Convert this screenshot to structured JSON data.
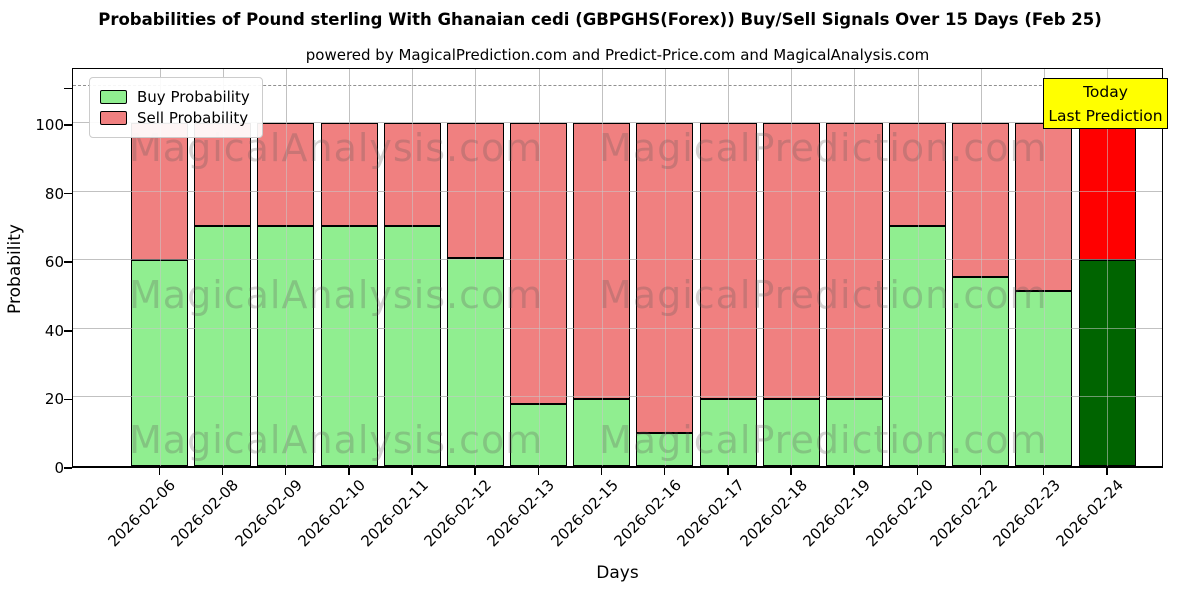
{
  "title": "Probabilities of Pound sterling With Ghanaian cedi (GBPGHS(Forex)) Buy/Sell Signals Over 15 Days (Feb 25)",
  "subtitle": "powered by MagicalPrediction.com and Predict-Price.com and MagicalAnalysis.com",
  "annotation_box": {
    "line1": "Today",
    "line2": "Last Prediction",
    "bg_color": "#ffff00"
  },
  "legend": {
    "items": [
      {
        "label": "Buy Probability",
        "color": "#90ee90"
      },
      {
        "label": "Sell Probability",
        "color": "#f08080"
      }
    ]
  },
  "watermarks": {
    "left_text": "MagicalAnalysis.com",
    "right_text": "MagicalPrediction.com"
  },
  "colors": {
    "buy": "#90ee90",
    "sell": "#f08080",
    "today_buy": "#006400",
    "today_sell": "#ff0000",
    "grid": "#b9b9b9",
    "dashed_line": "#8f8f8f",
    "annotation_bg": "#ffff00"
  },
  "chart_data": {
    "type": "bar",
    "stacked": true,
    "title": "Probabilities of Pound sterling With Ghanaian cedi (GBPGHS(Forex)) Buy/Sell Signals Over 15 Days (Feb 25)",
    "xlabel": "Days",
    "ylabel": "Probability",
    "ylim": [
      0,
      116.6
    ],
    "yticks": [
      0,
      20,
      40,
      60,
      80,
      100
    ],
    "dashed_line_y": 110.8,
    "grid": true,
    "legend_position": "upper-left",
    "categories": [
      "2026-02-06",
      "2026-02-08",
      "2026-02-09",
      "2026-02-10",
      "2026-02-11",
      "2026-02-12",
      "2026-02-13",
      "2026-02-15",
      "2026-02-16",
      "2026-02-17",
      "2026-02-18",
      "2026-02-19",
      "2026-02-20",
      "2026-02-22",
      "2026-02-23",
      "2026-02-24"
    ],
    "series": [
      {
        "name": "Buy Probability",
        "color": "#90ee90",
        "today_color": "#006400",
        "values": [
          60,
          70,
          70,
          70,
          70,
          60.5,
          18,
          19.5,
          9.5,
          19.5,
          19.5,
          19.5,
          70,
          55,
          51,
          60
        ]
      },
      {
        "name": "Sell Probability",
        "color": "#f08080",
        "today_color": "#ff0000",
        "values": [
          40,
          30,
          30,
          30,
          30,
          39.5,
          82,
          80.5,
          90.5,
          80.5,
          80.5,
          80.5,
          30,
          45,
          49,
          40
        ]
      }
    ],
    "today_index": 15
  }
}
